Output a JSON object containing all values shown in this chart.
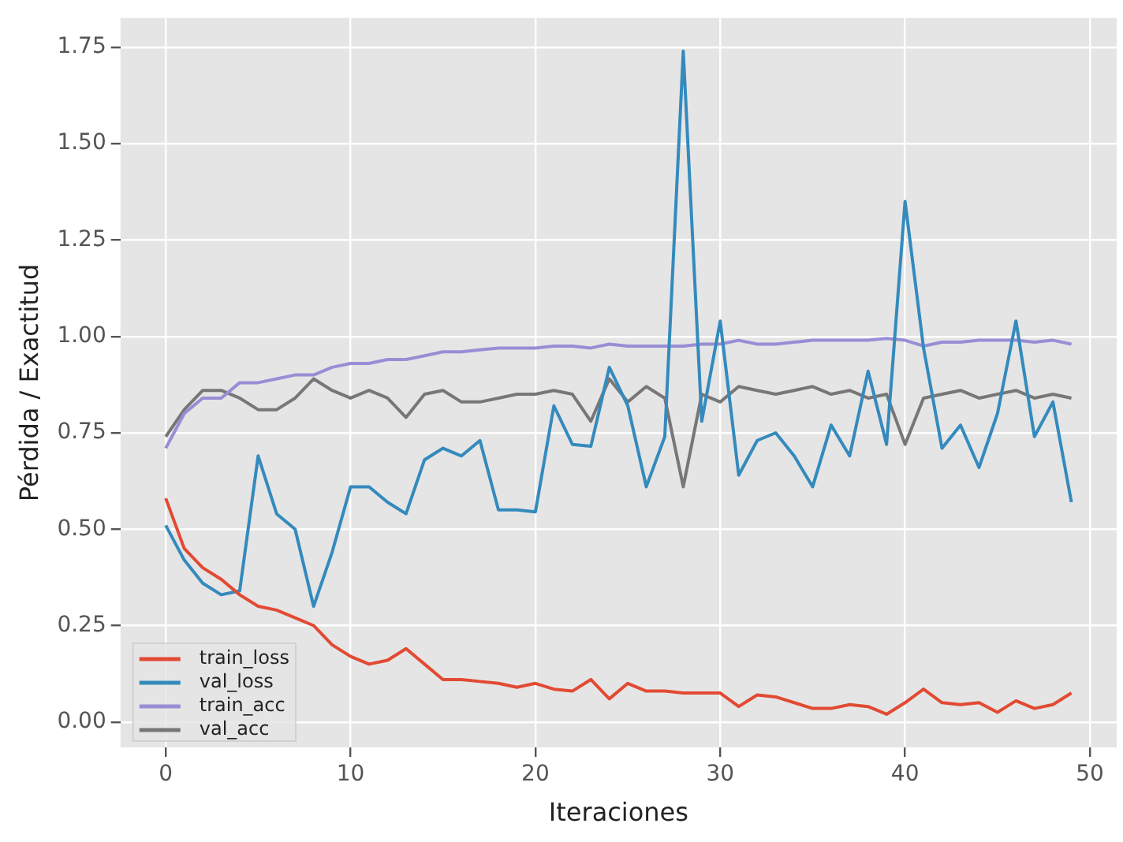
{
  "chart_data": {
    "type": "line",
    "xlabel": "Iteraciones",
    "ylabel": "Pérdida / Exactitud",
    "x": [
      0,
      1,
      2,
      3,
      4,
      5,
      6,
      7,
      8,
      9,
      10,
      11,
      12,
      13,
      14,
      15,
      16,
      17,
      18,
      19,
      20,
      21,
      22,
      23,
      24,
      25,
      26,
      27,
      28,
      29,
      30,
      31,
      32,
      33,
      34,
      35,
      36,
      37,
      38,
      39,
      40,
      41,
      42,
      43,
      44,
      45,
      46,
      47,
      48,
      49
    ],
    "series": [
      {
        "name": "train_loss",
        "color": "#e24a33",
        "values": [
          0.58,
          0.45,
          0.4,
          0.37,
          0.33,
          0.3,
          0.29,
          0.27,
          0.25,
          0.2,
          0.17,
          0.15,
          0.16,
          0.19,
          0.15,
          0.11,
          0.11,
          0.105,
          0.1,
          0.09,
          0.1,
          0.085,
          0.08,
          0.11,
          0.06,
          0.1,
          0.08,
          0.08,
          0.075,
          0.075,
          0.075,
          0.04,
          0.07,
          0.065,
          0.05,
          0.035,
          0.035,
          0.045,
          0.04,
          0.02,
          0.05,
          0.085,
          0.05,
          0.045,
          0.05,
          0.025,
          0.055,
          0.035,
          0.045,
          0.075
        ]
      },
      {
        "name": "val_loss",
        "color": "#348abd",
        "values": [
          0.51,
          0.42,
          0.36,
          0.33,
          0.34,
          0.69,
          0.54,
          0.5,
          0.3,
          0.44,
          0.61,
          0.61,
          0.57,
          0.54,
          0.68,
          0.71,
          0.69,
          0.73,
          0.55,
          0.55,
          0.545,
          0.82,
          0.72,
          0.715,
          0.92,
          0.82,
          0.61,
          0.74,
          1.74,
          0.78,
          1.04,
          0.64,
          0.73,
          0.75,
          0.69,
          0.61,
          0.77,
          0.69,
          0.91,
          0.72,
          1.35,
          0.97,
          0.71,
          0.77,
          0.66,
          0.8,
          1.04,
          0.74,
          0.83,
          0.57
        ]
      },
      {
        "name": "train_acc",
        "color": "#988ed5",
        "values": [
          0.71,
          0.8,
          0.84,
          0.84,
          0.88,
          0.88,
          0.89,
          0.9,
          0.9,
          0.92,
          0.93,
          0.93,
          0.94,
          0.94,
          0.95,
          0.96,
          0.96,
          0.965,
          0.97,
          0.97,
          0.97,
          0.975,
          0.975,
          0.97,
          0.98,
          0.975,
          0.975,
          0.975,
          0.975,
          0.98,
          0.98,
          0.99,
          0.98,
          0.98,
          0.985,
          0.99,
          0.99,
          0.99,
          0.99,
          0.995,
          0.99,
          0.975,
          0.985,
          0.985,
          0.99,
          0.99,
          0.99,
          0.985,
          0.99,
          0.98
        ]
      },
      {
        "name": "val_acc",
        "color": "#777777",
        "values": [
          0.74,
          0.81,
          0.86,
          0.86,
          0.84,
          0.81,
          0.81,
          0.84,
          0.89,
          0.86,
          0.84,
          0.86,
          0.84,
          0.79,
          0.85,
          0.86,
          0.83,
          0.83,
          0.84,
          0.85,
          0.85,
          0.86,
          0.85,
          0.78,
          0.89,
          0.83,
          0.87,
          0.84,
          0.61,
          0.85,
          0.83,
          0.87,
          0.86,
          0.85,
          0.86,
          0.87,
          0.85,
          0.86,
          0.84,
          0.85,
          0.72,
          0.84,
          0.85,
          0.86,
          0.84,
          0.85,
          0.86,
          0.84,
          0.85,
          0.84
        ]
      }
    ],
    "xlim": [
      -2.45,
      51.45
    ],
    "xticks": [
      0,
      10,
      20,
      30,
      40,
      50
    ],
    "ylim": [
      -0.066,
      1.826
    ],
    "yticks": [
      {
        "value": 0,
        "label": "0.00"
      },
      {
        "value": 0.25,
        "label": "0.25"
      },
      {
        "value": 0.5,
        "label": "0.50"
      },
      {
        "value": 0.75,
        "label": "0.75"
      },
      {
        "value": 1,
        "label": "1.00"
      },
      {
        "value": 1.25,
        "label": "1.25"
      },
      {
        "value": 1.5,
        "label": "1.50"
      },
      {
        "value": 1.75,
        "label": "1.75"
      }
    ],
    "grid": true,
    "legend": "bottom left",
    "marker": "none",
    "line_style": "solid"
  }
}
